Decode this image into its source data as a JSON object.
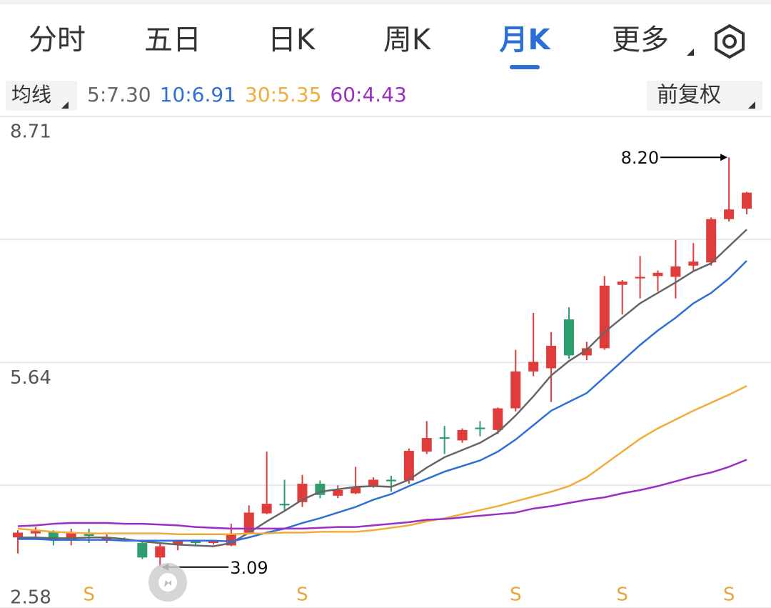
{
  "tabs": [
    "分时",
    "五日",
    "日K",
    "周K",
    "月K",
    "更多"
  ],
  "active_tab": 4,
  "ma_menu": "均线",
  "adjust": "前复权",
  "chart_data": {
    "type": "candlestick",
    "ylim": [
      2.58,
      8.71
    ],
    "yticks": [
      8.71,
      5.64,
      2.58
    ],
    "gridlines": [
      7.175,
      4.11
    ],
    "up_color": "#e03c3c",
    "down_color": "#2e9e6e",
    "candles": [
      {
        "open": 3.46,
        "high": 3.55,
        "low": 3.26,
        "close": 3.52
      },
      {
        "open": 3.51,
        "high": 3.59,
        "low": 3.46,
        "close": 3.54
      },
      {
        "open": 3.53,
        "high": 3.55,
        "low": 3.36,
        "close": 3.42
      },
      {
        "open": 3.42,
        "high": 3.57,
        "low": 3.36,
        "close": 3.52
      },
      {
        "open": 3.51,
        "high": 3.57,
        "low": 3.39,
        "close": 3.48
      },
      {
        "open": 3.43,
        "high": 3.5,
        "low": 3.39,
        "close": 3.46
      },
      {
        "open": 3.44,
        "high": 3.46,
        "low": 3.41,
        "close": 3.42
      },
      {
        "open": 3.39,
        "high": 3.43,
        "low": 3.19,
        "close": 3.21
      },
      {
        "open": 3.21,
        "high": 3.39,
        "low": 3.09,
        "close": 3.35
      },
      {
        "open": 3.37,
        "high": 3.42,
        "low": 3.3,
        "close": 3.41
      },
      {
        "open": 3.41,
        "high": 3.43,
        "low": 3.37,
        "close": 3.39
      },
      {
        "open": 3.39,
        "high": 3.43,
        "low": 3.37,
        "close": 3.41
      },
      {
        "open": 3.36,
        "high": 3.63,
        "low": 3.35,
        "close": 3.5
      },
      {
        "open": 3.52,
        "high": 3.86,
        "low": 3.5,
        "close": 3.77
      },
      {
        "open": 3.76,
        "high": 4.53,
        "low": 3.75,
        "close": 3.88
      },
      {
        "open": 3.88,
        "high": 4.18,
        "low": 3.8,
        "close": 3.86
      },
      {
        "open": 3.9,
        "high": 4.24,
        "low": 3.84,
        "close": 4.13
      },
      {
        "open": 4.13,
        "high": 4.17,
        "low": 3.95,
        "close": 3.99
      },
      {
        "open": 3.98,
        "high": 4.11,
        "low": 3.95,
        "close": 4.05
      },
      {
        "open": 4.01,
        "high": 4.34,
        "low": 4.0,
        "close": 4.09
      },
      {
        "open": 4.1,
        "high": 4.21,
        "low": 4.08,
        "close": 4.18
      },
      {
        "open": 4.18,
        "high": 4.23,
        "low": 4.03,
        "close": 4.16
      },
      {
        "open": 4.17,
        "high": 4.57,
        "low": 4.13,
        "close": 4.54
      },
      {
        "open": 4.53,
        "high": 4.91,
        "low": 4.5,
        "close": 4.7
      },
      {
        "open": 4.71,
        "high": 4.85,
        "low": 4.5,
        "close": 4.69
      },
      {
        "open": 4.67,
        "high": 4.82,
        "low": 4.64,
        "close": 4.8
      },
      {
        "open": 4.83,
        "high": 4.91,
        "low": 4.72,
        "close": 4.81
      },
      {
        "open": 4.8,
        "high": 5.08,
        "low": 4.75,
        "close": 5.07
      },
      {
        "open": 5.07,
        "high": 5.8,
        "low": 5.03,
        "close": 5.53
      },
      {
        "open": 5.53,
        "high": 6.26,
        "low": 5.47,
        "close": 5.65
      },
      {
        "open": 5.57,
        "high": 6.02,
        "low": 5.15,
        "close": 5.85
      },
      {
        "open": 6.18,
        "high": 6.33,
        "low": 5.69,
        "close": 5.73
      },
      {
        "open": 5.73,
        "high": 5.9,
        "low": 5.67,
        "close": 5.82
      },
      {
        "open": 5.82,
        "high": 6.72,
        "low": 5.8,
        "close": 6.6
      },
      {
        "open": 6.61,
        "high": 6.67,
        "low": 6.24,
        "close": 6.65
      },
      {
        "open": 6.69,
        "high": 6.97,
        "low": 6.44,
        "close": 6.71
      },
      {
        "open": 6.72,
        "high": 6.79,
        "low": 6.53,
        "close": 6.76
      },
      {
        "open": 6.71,
        "high": 7.17,
        "low": 6.44,
        "close": 6.84
      },
      {
        "open": 6.85,
        "high": 7.13,
        "low": 6.78,
        "close": 6.9
      },
      {
        "open": 6.89,
        "high": 7.45,
        "low": 6.85,
        "close": 7.43
      },
      {
        "open": 7.43,
        "high": 8.2,
        "low": 7.4,
        "close": 7.55
      },
      {
        "open": 7.56,
        "high": 7.77,
        "low": 7.49,
        "close": 7.76
      }
    ],
    "series": [
      {
        "name": "5:7.30",
        "color": "#666666",
        "values": [
          3.46,
          3.46,
          3.45,
          3.45,
          3.46,
          3.46,
          3.44,
          3.41,
          3.39,
          3.37,
          3.36,
          3.35,
          3.39,
          3.52,
          3.66,
          3.79,
          3.93,
          4.03,
          4.06,
          4.09,
          4.1,
          4.09,
          4.18,
          4.33,
          4.46,
          4.55,
          4.64,
          4.77,
          4.98,
          5.22,
          5.48,
          5.66,
          5.8,
          6.02,
          6.2,
          6.38,
          6.51,
          6.64,
          6.78,
          6.88,
          7.09,
          7.3
        ]
      },
      {
        "name": "10:6.91",
        "color": "#2f6fd6",
        "values": [
          3.44,
          3.44,
          3.43,
          3.43,
          3.43,
          3.43,
          3.42,
          3.42,
          3.42,
          3.42,
          3.42,
          3.42,
          3.41,
          3.46,
          3.52,
          3.57,
          3.64,
          3.7,
          3.77,
          3.84,
          3.93,
          4.0,
          4.1,
          4.19,
          4.28,
          4.35,
          4.42,
          4.53,
          4.68,
          4.86,
          5.04,
          5.15,
          5.26,
          5.46,
          5.66,
          5.86,
          6.04,
          6.2,
          6.38,
          6.51,
          6.69,
          6.91
        ]
      },
      {
        "name": "30:5.35",
        "color": "#f0ad3c",
        "values": [
          3.57,
          3.55,
          3.53,
          3.52,
          3.51,
          3.51,
          3.51,
          3.51,
          3.51,
          3.5,
          3.5,
          3.5,
          3.5,
          3.51,
          3.51,
          3.52,
          3.52,
          3.53,
          3.53,
          3.53,
          3.55,
          3.58,
          3.61,
          3.66,
          3.7,
          3.75,
          3.8,
          3.85,
          3.91,
          3.97,
          4.03,
          4.1,
          4.21,
          4.37,
          4.53,
          4.69,
          4.82,
          4.93,
          5.04,
          5.14,
          5.24,
          5.35
        ]
      },
      {
        "name": "60:4.43",
        "color": "#9b2fc4",
        "values": [
          3.6,
          3.61,
          3.63,
          3.64,
          3.64,
          3.64,
          3.63,
          3.63,
          3.62,
          3.61,
          3.59,
          3.58,
          3.57,
          3.57,
          3.57,
          3.57,
          3.57,
          3.58,
          3.59,
          3.59,
          3.61,
          3.63,
          3.65,
          3.68,
          3.69,
          3.71,
          3.73,
          3.75,
          3.77,
          3.82,
          3.85,
          3.89,
          3.93,
          3.96,
          4.01,
          4.05,
          4.1,
          4.16,
          4.22,
          4.27,
          4.34,
          4.43
        ]
      }
    ],
    "annotations": {
      "max": {
        "value": 8.2,
        "label": "8.20"
      },
      "min": {
        "value": 3.09,
        "label": "3.09"
      }
    },
    "signals": [
      {
        "text": "S",
        "candle": 4
      },
      {
        "text": "S",
        "candle": 16
      },
      {
        "text": "S",
        "candle": 28
      },
      {
        "text": "S",
        "candle": 34
      },
      {
        "text": "S",
        "candle": 40
      }
    ]
  }
}
